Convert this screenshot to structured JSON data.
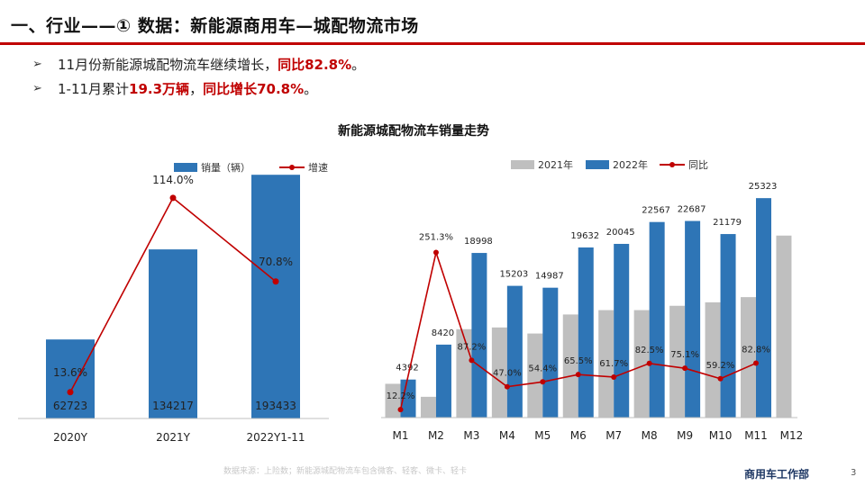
{
  "header": {
    "title": "一、行业——① 数据：新能源商用车—城配物流市场"
  },
  "bullets": [
    {
      "arrow": "➢",
      "text": "11月份新能源城配物流车继续增长，",
      "highlight": "同比82.8%",
      "tail": "。"
    },
    {
      "arrow": "➢",
      "text": "1-11月累计",
      "highlight": "19.3万辆",
      "mid": "，",
      "highlight2": "同比增长70.8%",
      "tail": "。"
    }
  ],
  "main_title": "新能源城配物流车销量走势",
  "colors": {
    "bar_2022": "#2e75b6",
    "bar_2021": "#bfbfbf",
    "line": "#c00000",
    "title_rule": "#c00000"
  },
  "chart_data": [
    {
      "type": "bar",
      "categories": [
        "2020Y",
        "2021Y",
        "2022Y1-11"
      ],
      "series": [
        {
          "name": "销量（辆）",
          "kind": "bar",
          "values": [
            62723,
            134217,
            193433
          ],
          "labels": [
            "62723",
            "134217",
            "193433"
          ]
        },
        {
          "name": "增速",
          "kind": "line",
          "values": [
            13.6,
            114.0,
            70.8
          ],
          "labels": [
            "13.6%",
            "114.0%",
            "70.8%"
          ]
        }
      ],
      "legend": "top",
      "grid": false
    },
    {
      "type": "bar",
      "categories": [
        "M1",
        "M2",
        "M3",
        "M4",
        "M5",
        "M6",
        "M7",
        "M8",
        "M9",
        "M10",
        "M11",
        "M12"
      ],
      "series": [
        {
          "name": "2021年",
          "kind": "bar",
          "values": [
            3900,
            2400,
            10200,
            10400,
            9700,
            11900,
            12400,
            12400,
            12900,
            13300,
            13900,
            21000
          ]
        },
        {
          "name": "2022年",
          "kind": "bar",
          "values": [
            4392,
            8420,
            18998,
            15203,
            14987,
            19632,
            20045,
            22567,
            22687,
            21179,
            25323,
            null
          ],
          "labels": [
            "4392",
            "8420",
            "18998",
            "15203",
            "14987",
            "19632",
            "20045",
            "22567",
            "22687",
            "21179",
            "25323",
            ""
          ]
        },
        {
          "name": "同比",
          "kind": "line",
          "values": [
            12.2,
            251.3,
            87.2,
            47.0,
            54.4,
            65.5,
            61.7,
            82.5,
            75.1,
            59.2,
            82.8,
            null
          ],
          "labels": [
            "12.2%",
            "251.3%",
            "87.2%",
            "47.0%",
            "54.4%",
            "65.5%",
            "61.7%",
            "82.5%",
            "75.1%",
            "59.2%",
            "82.8%",
            ""
          ]
        }
      ],
      "legend": "top",
      "grid": false
    }
  ],
  "footer": {
    "source": "数据来源：上险数；新能源城配物流车包含微客、轻客、微卡、轻卡",
    "dept": "商用车工作部",
    "page": "3"
  }
}
